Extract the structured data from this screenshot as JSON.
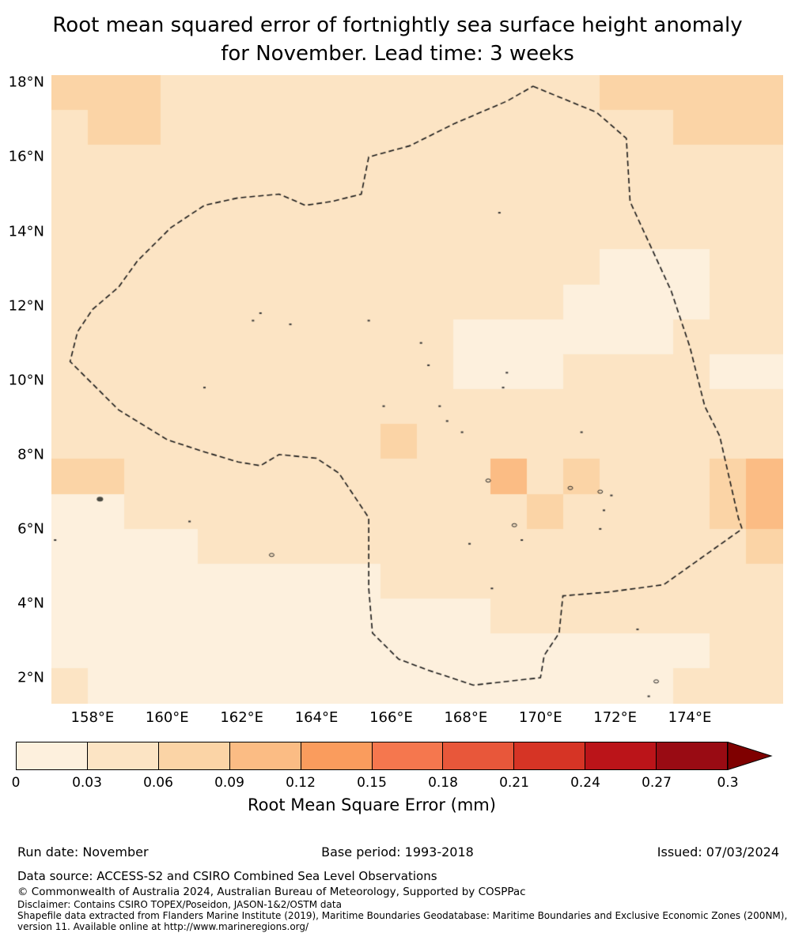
{
  "title": {
    "line1": "Root mean squared error of fortnightly sea surface height anomaly",
    "line2": "for November. Lead time: 3 weeks"
  },
  "chart_data": {
    "type": "heatmap",
    "title": "Root mean squared error of fortnightly sea surface height anomaly for November. Lead time: 3 weeks",
    "colorbar_label": "Root Mean Square Error (mm)",
    "lon_min": 156.9,
    "lon_max": 176.5,
    "lat_min": 1.3,
    "lat_max": 18.2,
    "x_ticks": [
      {
        "lon": 158,
        "label": "158°E"
      },
      {
        "lon": 160,
        "label": "160°E"
      },
      {
        "lon": 162,
        "label": "162°E"
      },
      {
        "lon": 164,
        "label": "164°E"
      },
      {
        "lon": 166,
        "label": "166°E"
      },
      {
        "lon": 168,
        "label": "168°E"
      },
      {
        "lon": 170,
        "label": "170°E"
      },
      {
        "lon": 172,
        "label": "172°E"
      },
      {
        "lon": 174,
        "label": "174°E"
      }
    ],
    "y_ticks": [
      {
        "lat": 18,
        "label": "18°N"
      },
      {
        "lat": 16,
        "label": "16°N"
      },
      {
        "lat": 14,
        "label": "14°N"
      },
      {
        "lat": 12,
        "label": "12°N"
      },
      {
        "lat": 10,
        "label": "10°N"
      },
      {
        "lat": 8,
        "label": "8°N"
      },
      {
        "lat": 6,
        "label": "6°N"
      },
      {
        "lat": 4,
        "label": "4°N"
      },
      {
        "lat": 2,
        "label": "2°N"
      }
    ],
    "colorbar": {
      "bin_edges": [
        0,
        0.03,
        0.06,
        0.09,
        0.12,
        0.15,
        0.18,
        0.21,
        0.24,
        0.27,
        0.3
      ],
      "tick_labels": [
        "0",
        "0.03",
        "0.06",
        "0.09",
        "0.12",
        "0.15",
        "0.18",
        "0.21",
        "0.24",
        "0.27",
        "0.3"
      ],
      "colors": [
        "#fdf0dd",
        "#fce4c4",
        "#fbd4a6",
        "#fbbc84",
        "#fa9c5d",
        "#f5774e",
        "#e8573a",
        "#d63425",
        "#bb1419",
        "#990b13"
      ],
      "extend_color": "#7f0000",
      "label": "Root Mean Square Error (mm)"
    },
    "grid": {
      "units": "mm",
      "values": [
        [
          0.07,
          0.07,
          0.07,
          0.05,
          0.045,
          0.045,
          0.045,
          0.045,
          0.045,
          0.045,
          0.045,
          0.045,
          0.045,
          0.045,
          0.05,
          0.07,
          0.07,
          0.07,
          0.07,
          0.08
        ],
        [
          0.05,
          0.07,
          0.07,
          0.05,
          0.045,
          0.045,
          0.045,
          0.045,
          0.045,
          0.045,
          0.045,
          0.045,
          0.045,
          0.045,
          0.045,
          0.05,
          0.05,
          0.07,
          0.07,
          0.07
        ],
        [
          0.045,
          0.045,
          0.045,
          0.045,
          0.045,
          0.045,
          0.045,
          0.045,
          0.045,
          0.045,
          0.045,
          0.045,
          0.045,
          0.045,
          0.045,
          0.045,
          0.045,
          0.045,
          0.05,
          0.05
        ],
        [
          0.05,
          0.045,
          0.045,
          0.045,
          0.045,
          0.045,
          0.045,
          0.045,
          0.045,
          0.045,
          0.045,
          0.045,
          0.045,
          0.045,
          0.045,
          0.045,
          0.045,
          0.045,
          0.045,
          0.05
        ],
        [
          0.045,
          0.045,
          0.045,
          0.045,
          0.045,
          0.045,
          0.045,
          0.045,
          0.045,
          0.045,
          0.045,
          0.045,
          0.045,
          0.045,
          0.045,
          0.045,
          0.045,
          0.045,
          0.045,
          0.05
        ],
        [
          0.045,
          0.045,
          0.045,
          0.045,
          0.045,
          0.045,
          0.045,
          0.045,
          0.045,
          0.045,
          0.045,
          0.045,
          0.045,
          0.045,
          0.045,
          0.02,
          0.02,
          0.02,
          0.045,
          0.045
        ],
        [
          0.045,
          0.045,
          0.045,
          0.045,
          0.045,
          0.045,
          0.045,
          0.045,
          0.045,
          0.045,
          0.045,
          0.045,
          0.045,
          0.045,
          0.02,
          0.02,
          0.02,
          0.02,
          0.045,
          0.05
        ],
        [
          0.045,
          0.045,
          0.045,
          0.045,
          0.045,
          0.045,
          0.045,
          0.045,
          0.045,
          0.045,
          0.045,
          0.02,
          0.02,
          0.02,
          0.02,
          0.02,
          0.02,
          0.045,
          0.045,
          0.045
        ],
        [
          0.045,
          0.045,
          0.045,
          0.045,
          0.045,
          0.045,
          0.045,
          0.045,
          0.045,
          0.045,
          0.045,
          0.02,
          0.02,
          0.02,
          0.045,
          0.045,
          0.045,
          0.045,
          0.02,
          0.02
        ],
        [
          0.045,
          0.045,
          0.045,
          0.045,
          0.045,
          0.045,
          0.045,
          0.045,
          0.045,
          0.045,
          0.045,
          0.045,
          0.045,
          0.045,
          0.045,
          0.045,
          0.045,
          0.045,
          0.045,
          0.045
        ],
        [
          0.05,
          0.05,
          0.045,
          0.045,
          0.045,
          0.045,
          0.045,
          0.045,
          0.045,
          0.07,
          0.045,
          0.045,
          0.045,
          0.045,
          0.045,
          0.045,
          0.045,
          0.045,
          0.045,
          0.05
        ],
        [
          0.06,
          0.07,
          0.05,
          0.045,
          0.045,
          0.045,
          0.045,
          0.045,
          0.045,
          0.045,
          0.045,
          0.045,
          0.1,
          0.045,
          0.06,
          0.05,
          0.045,
          0.045,
          0.06,
          0.09
        ],
        [
          0.02,
          0.02,
          0.045,
          0.045,
          0.045,
          0.045,
          0.045,
          0.045,
          0.045,
          0.045,
          0.045,
          0.045,
          0.045,
          0.08,
          0.045,
          0.045,
          0.045,
          0.05,
          0.06,
          0.09
        ],
        [
          0.02,
          0.02,
          0.02,
          0.02,
          0.045,
          0.045,
          0.045,
          0.045,
          0.045,
          0.045,
          0.045,
          0.045,
          0.045,
          0.045,
          0.045,
          0.045,
          0.045,
          0.045,
          0.05,
          0.06
        ],
        [
          0.02,
          0.02,
          0.02,
          0.02,
          0.02,
          0.02,
          0.02,
          0.02,
          0.02,
          0.045,
          0.045,
          0.045,
          0.045,
          0.045,
          0.045,
          0.045,
          0.045,
          0.045,
          0.045,
          0.05
        ],
        [
          0.02,
          0.02,
          0.02,
          0.02,
          0.02,
          0.02,
          0.02,
          0.02,
          0.02,
          0.02,
          0.02,
          0.02,
          0.045,
          0.045,
          0.045,
          0.045,
          0.045,
          0.045,
          0.045,
          0.045
        ],
        [
          0.02,
          0.02,
          0.02,
          0.02,
          0.02,
          0.02,
          0.02,
          0.02,
          0.02,
          0.02,
          0.02,
          0.02,
          0.02,
          0.02,
          0.02,
          0.02,
          0.02,
          0.02,
          0.035,
          0.035
        ],
        [
          0.035,
          0.02,
          0.02,
          0.02,
          0.02,
          0.02,
          0.02,
          0.02,
          0.02,
          0.02,
          0.02,
          0.02,
          0.02,
          0.02,
          0.02,
          0.02,
          0.02,
          0.035,
          0.035,
          0.035
        ]
      ]
    },
    "eez_boundary": [
      [
        169.8,
        17.9
      ],
      [
        171.5,
        17.2
      ],
      [
        172.3,
        16.5
      ],
      [
        172.4,
        14.8
      ],
      [
        173.5,
        12.4
      ],
      [
        174.0,
        10.9
      ],
      [
        174.4,
        9.3
      ],
      [
        174.8,
        8.5
      ],
      [
        175.3,
        6.3
      ],
      [
        175.4,
        6.0
      ],
      [
        173.3,
        4.5
      ],
      [
        171.8,
        4.3
      ],
      [
        170.6,
        4.2
      ],
      [
        170.5,
        3.2
      ],
      [
        170.1,
        2.6
      ],
      [
        170.0,
        2.0
      ],
      [
        168.2,
        1.8
      ],
      [
        167.0,
        2.2
      ],
      [
        166.2,
        2.5
      ],
      [
        165.5,
        3.2
      ],
      [
        165.4,
        4.4
      ],
      [
        165.4,
        6.3
      ],
      [
        164.6,
        7.5
      ],
      [
        164.0,
        7.9
      ],
      [
        163.0,
        8.0
      ],
      [
        162.5,
        7.7
      ],
      [
        161.9,
        7.8
      ],
      [
        160.9,
        8.1
      ],
      [
        160.0,
        8.4
      ],
      [
        158.7,
        9.2
      ],
      [
        158.0,
        9.9
      ],
      [
        157.4,
        10.5
      ],
      [
        157.6,
        11.3
      ],
      [
        158.0,
        11.9
      ],
      [
        158.7,
        12.5
      ],
      [
        159.2,
        13.2
      ],
      [
        160.1,
        14.1
      ],
      [
        161.0,
        14.7
      ],
      [
        161.9,
        14.9
      ],
      [
        163.0,
        15.0
      ],
      [
        163.7,
        14.7
      ],
      [
        164.4,
        14.8
      ],
      [
        165.2,
        15.0
      ],
      [
        165.4,
        16.0
      ],
      [
        166.5,
        16.3
      ],
      [
        167.7,
        16.9
      ],
      [
        169.1,
        17.5
      ]
    ],
    "islands": [
      [
        158.2,
        6.8,
        6
      ],
      [
        157.0,
        5.7,
        2
      ],
      [
        160.6,
        6.2,
        2
      ],
      [
        162.8,
        5.3,
        4
      ],
      [
        161.0,
        9.8,
        2
      ],
      [
        162.3,
        11.6,
        2
      ],
      [
        162.5,
        11.8,
        2
      ],
      [
        163.3,
        11.5,
        2
      ],
      [
        165.4,
        11.6,
        2
      ],
      [
        165.8,
        9.3,
        2
      ],
      [
        166.8,
        11.0,
        2
      ],
      [
        167.0,
        10.4,
        2
      ],
      [
        167.3,
        9.3,
        2
      ],
      [
        167.5,
        8.9,
        2
      ],
      [
        167.9,
        8.6,
        2
      ],
      [
        169.0,
        9.8,
        2
      ],
      [
        169.1,
        10.2,
        2
      ],
      [
        168.9,
        14.5,
        2
      ],
      [
        168.6,
        7.3,
        3
      ],
      [
        169.3,
        6.1,
        3
      ],
      [
        169.5,
        5.7,
        2
      ],
      [
        168.1,
        5.6,
        2
      ],
      [
        171.1,
        8.6,
        2
      ],
      [
        170.8,
        7.1,
        3
      ],
      [
        171.6,
        7.0,
        3
      ],
      [
        171.9,
        6.9,
        2
      ],
      [
        171.7,
        6.5,
        2
      ],
      [
        171.6,
        6.0,
        2
      ],
      [
        172.6,
        3.3,
        2
      ],
      [
        173.1,
        1.9,
        3
      ],
      [
        172.9,
        1.5,
        2
      ],
      [
        168.7,
        4.4,
        2
      ]
    ]
  },
  "footer": {
    "run_date": "Run date: November",
    "base_period": "Base period: 1993-2018",
    "issued": "Issued: 07/03/2024",
    "data_source": "Data source: ACCESS-S2 and CSIRO Combined Sea Level Observations",
    "copyright": "© Commonwealth of Australia 2024, Australian Bureau of Meteorology, Supported by COSPPac",
    "disclaimer": "Disclaimer: Contains CSIRO TOPEX/Poseidon, JASON-1&2/OSTM data",
    "shapefile_line1": "Shapefile data extracted from Flanders Marine Institute (2019), Maritime Boundaries Geodatabase: Maritime Boundaries and Exclusive Economic Zones (200NM),",
    "shapefile_line2": "version 11. Available online at http://www.marineregions.org/"
  }
}
